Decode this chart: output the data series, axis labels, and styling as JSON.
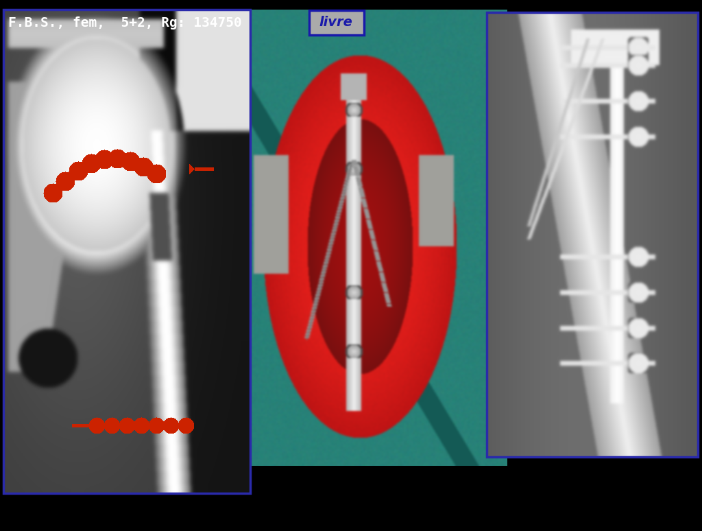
{
  "background_color": "#000000",
  "title_text": "F.B.S., fem,  5+2, Rg: 134750",
  "title_color": "#ffffff",
  "title_fontsize": 14,
  "livre_text": "livre",
  "livre_box_color": "#aaaaaa",
  "livre_border_color": "#1a1aaa",
  "livre_text_color": "#1a1aaa",
  "panel1_border_color": "#2a2aaa",
  "panel3_border_color": "#2a2aaa",
  "arrow_color": "#cc2200",
  "dot_color": [
    204,
    34,
    0
  ]
}
